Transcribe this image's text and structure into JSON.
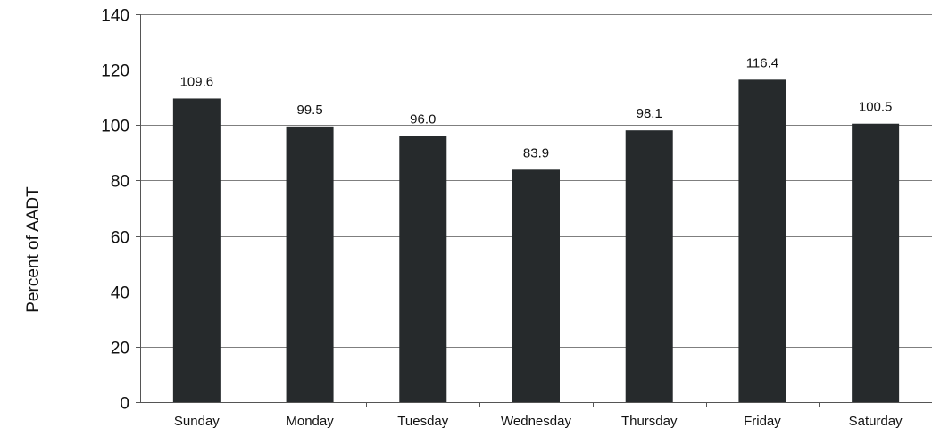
{
  "chart_data": {
    "type": "bar",
    "title": "",
    "xlabel": "",
    "ylabel": "Percent of AADT",
    "categories": [
      "Sunday",
      "Monday",
      "Tuesday",
      "Wednesday",
      "Thursday",
      "Friday",
      "Saturday"
    ],
    "values": [
      109.6,
      99.5,
      96.0,
      83.9,
      98.1,
      116.4,
      100.5
    ],
    "data_labels": [
      "109.6",
      "99.5",
      "96.0",
      "83.9",
      "98.1",
      "116.4",
      "100.5"
    ],
    "yticks": [
      "0",
      "20",
      "40",
      "60",
      "80",
      "100",
      "120",
      "140"
    ],
    "ylim": [
      0,
      140
    ],
    "grid": true,
    "legend": "none",
    "bar_color": "#262a2c",
    "grid_color": "#7f7f7f",
    "axis_color": "#555555"
  }
}
